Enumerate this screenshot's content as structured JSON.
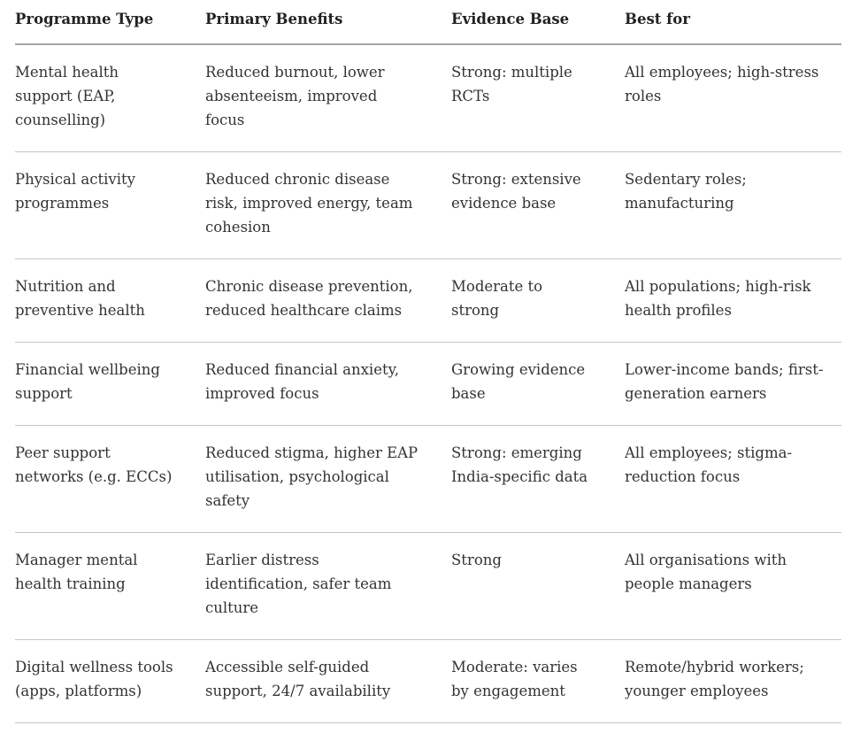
{
  "page": {
    "background": "#ffffff",
    "text_color": "#333333",
    "header_rule_color": "#a6a6a6",
    "row_rule_color": "#c6c6c6"
  },
  "table": {
    "columns": [
      "Programme Type",
      "Primary Benefits",
      "Evidence Base",
      "Best for"
    ],
    "rows": [
      {
        "programme_type": "Mental health support (EAP, counselling)",
        "primary_benefits": "Reduced burnout, lower absenteeism, improved focus",
        "evidence_base": "Strong: multiple RCTs",
        "best_for": "All employees; high-stress roles"
      },
      {
        "programme_type": "Physical activity programmes",
        "primary_benefits": "Reduced chronic disease risk, improved energy, team cohesion",
        "evidence_base": "Strong: extensive evidence base",
        "best_for": "Sedentary roles; manufacturing"
      },
      {
        "programme_type": "Nutrition and preventive health",
        "primary_benefits": "Chronic disease prevention, reduced healthcare claims",
        "evidence_base": "Moderate to strong",
        "best_for": "All populations; high-risk health profiles"
      },
      {
        "programme_type": "Financial wellbeing support",
        "primary_benefits": "Reduced financial anxiety, improved focus",
        "evidence_base": "Growing evidence base",
        "best_for": "Lower-income bands; first-generation earners"
      },
      {
        "programme_type": "Peer support networks (e.g. ECCs)",
        "primary_benefits": "Reduced stigma, higher EAP utilisation, psychological safety",
        "evidence_base": "Strong: emerging India-specific data",
        "best_for": "All employees; stigma-reduction focus"
      },
      {
        "programme_type": "Manager mental health training",
        "primary_benefits": "Earlier distress identification, safer team culture",
        "evidence_base": "Strong",
        "best_for": "All organisations with people managers"
      },
      {
        "programme_type": "Digital wellness tools (apps, platforms)",
        "primary_benefits": "Accessible self-guided support, 24/7 availability",
        "evidence_base": "Moderate: varies by engagement",
        "best_for": "Remote/hybrid workers; younger employees"
      }
    ]
  }
}
